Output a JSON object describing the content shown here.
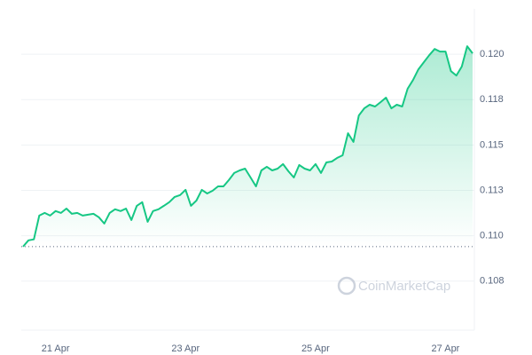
{
  "chart_data": {
    "type": "line",
    "watermark": "CoinMarketCap",
    "categories": [
      null,
      null,
      null,
      null,
      null,
      null,
      "21 Apr",
      null,
      null,
      null,
      null,
      null,
      null,
      null,
      null,
      null,
      null,
      null,
      null,
      null,
      null,
      null,
      null,
      null,
      null,
      null,
      null,
      null,
      null,
      null,
      "23 Apr",
      null,
      null,
      null,
      null,
      null,
      null,
      null,
      null,
      null,
      null,
      null,
      null,
      null,
      null,
      null,
      null,
      null,
      null,
      null,
      null,
      null,
      null,
      null,
      "25 Apr",
      null,
      null,
      null,
      null,
      null,
      null,
      null,
      null,
      null,
      null,
      null,
      null,
      null,
      null,
      null,
      null,
      null,
      null,
      null,
      null,
      null,
      null,
      null,
      "27 Apr",
      null,
      null,
      null,
      null,
      null
    ],
    "series": [
      {
        "color": "#16c784",
        "values": [
          0.1094,
          0.10975,
          0.1098,
          0.11111,
          0.11126,
          0.11111,
          0.11136,
          0.11126,
          0.1115,
          0.11121,
          0.11126,
          0.11111,
          0.11116,
          0.11121,
          0.11102,
          0.11067,
          0.11126,
          0.11146,
          0.11136,
          0.1115,
          0.11087,
          0.11165,
          0.11185,
          0.11077,
          0.11136,
          0.11146,
          0.11165,
          0.11185,
          0.11214,
          0.11224,
          0.11253,
          0.11165,
          0.11194,
          0.11253,
          0.11233,
          0.11248,
          0.11272,
          0.11272,
          0.11307,
          0.11346,
          0.1136,
          0.1137,
          0.11321,
          0.11272,
          0.1136,
          0.1138,
          0.1136,
          0.1137,
          0.11395,
          0.11355,
          0.11321,
          0.1139,
          0.1137,
          0.1136,
          0.11395,
          0.11346,
          0.11404,
          0.11409,
          0.11429,
          0.11443,
          0.11565,
          0.11517,
          0.11663,
          0.11702,
          0.11722,
          0.11712,
          0.11736,
          0.11761,
          0.11702,
          0.11722,
          0.11712,
          0.1181,
          0.11858,
          0.11917,
          0.11956,
          0.11995,
          0.12029,
          0.12015,
          0.12015,
          0.11907,
          0.11883,
          0.11932,
          0.12044,
          0.12005
        ]
      }
    ],
    "baseline": 0.1094,
    "ylim": [
      0.1048,
      0.1225
    ],
    "yticks": [
      {
        "value": 0.1075,
        "label": "0.108"
      },
      {
        "value": 0.11,
        "label": "0.110"
      },
      {
        "value": 0.1125,
        "label": "0.113"
      },
      {
        "value": 0.115,
        "label": "0.115"
      },
      {
        "value": 0.1175,
        "label": "0.118"
      },
      {
        "value": 0.12,
        "label": "0.120"
      }
    ],
    "grid": true
  }
}
